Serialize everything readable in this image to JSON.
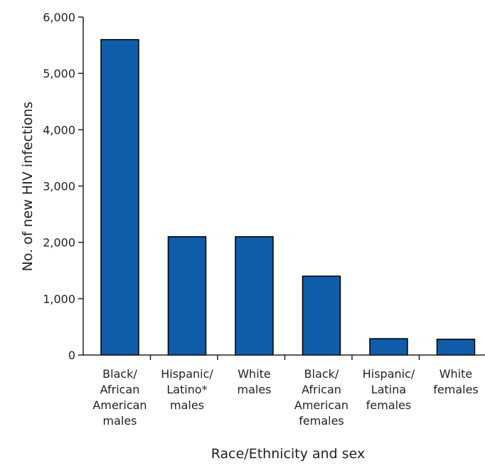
{
  "chart_data": {
    "type": "bar",
    "title": "",
    "xlabel": "Race/Ethnicity and sex",
    "ylabel": "No. of new HIV infections",
    "ylim": [
      0,
      6000
    ],
    "yticks": [
      0,
      1000,
      2000,
      3000,
      4000,
      5000,
      6000
    ],
    "ytick_labels": [
      "0",
      "1,000",
      "2,000",
      "3,000",
      "4,000",
      "5,000",
      "6,000"
    ],
    "categories": [
      [
        "Black/",
        "African",
        "American",
        "males"
      ],
      [
        "Hispanic/",
        "Latino*",
        "males"
      ],
      [
        "White",
        "males"
      ],
      [
        "Black/",
        "African",
        "American",
        "females"
      ],
      [
        "Hispanic/",
        "Latina",
        "females"
      ],
      [
        "White",
        "females"
      ]
    ],
    "values": [
      5600,
      2100,
      2100,
      1400,
      290,
      280
    ],
    "grid": false,
    "bar_color": "#0f5cab",
    "bar_edge_color": "#000000"
  }
}
